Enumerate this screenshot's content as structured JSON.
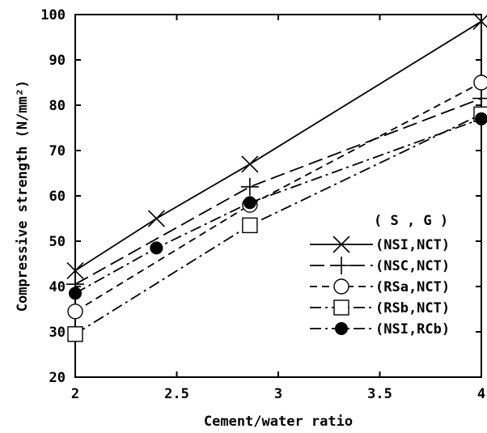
{
  "chart_data": {
    "type": "line",
    "title": "",
    "xlabel": "Cement/water ratio",
    "ylabel": "Compressive strength (N/mm²)",
    "xlim": [
      2,
      4
    ],
    "ylim": [
      20,
      100
    ],
    "xticks": [
      2,
      2.5,
      3,
      3.5,
      4
    ],
    "xtick_labels": [
      "2",
      "2.5",
      "3",
      "3.5",
      "4"
    ],
    "yticks": [
      20,
      30,
      40,
      50,
      60,
      70,
      80,
      90,
      100
    ],
    "ytick_labels": [
      "20",
      "30",
      "40",
      "50",
      "60",
      "70",
      "80",
      "90",
      "100"
    ],
    "grid": false,
    "legend_placement": "bottom-right",
    "legend_title": "( S , G )",
    "series": [
      {
        "name": "(NSI,NCT)",
        "marker": "x",
        "line": "solid",
        "x": [
          2,
          2.4,
          2.86,
          4
        ],
        "y": [
          43.5,
          55,
          67,
          98.5
        ]
      },
      {
        "name": "(NSC,NCT)",
        "marker": "plus",
        "line": "dash-long",
        "x": [
          2,
          2.86,
          4
        ],
        "y": [
          40.5,
          62,
          81.5
        ]
      },
      {
        "name": "(RSa,NCT)",
        "marker": "open-circle",
        "line": "dash-short",
        "x": [
          2,
          2.86,
          4
        ],
        "y": [
          34.5,
          58,
          85
        ]
      },
      {
        "name": "(RSb,NCT)",
        "marker": "open-square",
        "line": "dash-dot",
        "x": [
          2,
          2.86,
          4
        ],
        "y": [
          29.5,
          53.5,
          78
        ]
      },
      {
        "name": "(NSI,RCb)",
        "marker": "filled-circle",
        "line": "dash-dot",
        "x": [
          2,
          2.4,
          2.86,
          4
        ],
        "y": [
          38.5,
          48.5,
          58.5,
          77
        ]
      }
    ]
  }
}
